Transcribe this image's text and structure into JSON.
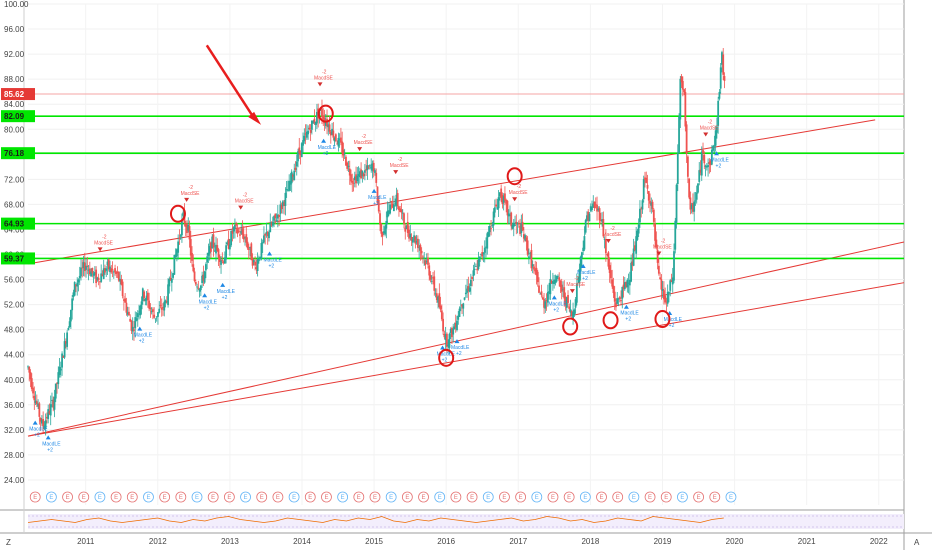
{
  "chart_data": {
    "type": "candlestick",
    "title": "",
    "xlabel": "",
    "ylabel": "",
    "ylim": [
      20,
      100
    ],
    "y_ticks": [
      "24.00",
      "28.00",
      "32.00",
      "36.00",
      "40.00",
      "44.00",
      "48.00",
      "52.00",
      "56.00",
      "60.00",
      "64.00",
      "68.00",
      "72.00",
      "76.00",
      "80.00",
      "84.00",
      "88.00",
      "92.00",
      "96.00",
      "100.00"
    ],
    "x_ticks": [
      {
        "label": "2011",
        "x": 2011.0
      },
      {
        "label": "2012",
        "x": 2012.0
      },
      {
        "label": "2013",
        "x": 2013.0
      },
      {
        "label": "2014",
        "x": 2014.0
      },
      {
        "label": "2015",
        "x": 2015.0
      },
      {
        "label": "2016",
        "x": 2016.0
      },
      {
        "label": "2017",
        "x": 2017.0
      },
      {
        "label": "2018",
        "x": 2018.0
      },
      {
        "label": "2019",
        "x": 2019.0
      },
      {
        "label": "2020",
        "x": 2020.0
      },
      {
        "label": "2021",
        "x": 2021.0
      },
      {
        "label": "2022",
        "x": 2022.0
      }
    ],
    "xlim": [
      2010.2,
      2022.35
    ],
    "last_price": {
      "label": "85.62",
      "value": 85.62,
      "color": "#e53935"
    },
    "support_resistance": [
      {
        "label": "82.09",
        "value": 82.09
      },
      {
        "label": "76.18",
        "value": 76.18
      },
      {
        "label": "64.93",
        "value": 64.93
      },
      {
        "label": "59.37",
        "value": 59.37
      }
    ],
    "trendlines": [
      {
        "x1": 2010.2,
        "y1": 58.5,
        "x2": 2021.95,
        "y2": 81.5
      },
      {
        "x1": 2010.2,
        "y1": 31.0,
        "x2": 2022.35,
        "y2": 62.0
      },
      {
        "x1": 2010.2,
        "y1": 31.0,
        "x2": 2022.35,
        "y2": 55.5
      }
    ],
    "price_path": [
      [
        2010.2,
        42.0
      ],
      [
        2010.3,
        37.0
      ],
      [
        2010.4,
        32.5
      ],
      [
        2010.55,
        36.5
      ],
      [
        2010.7,
        45.0
      ],
      [
        2010.85,
        55.0
      ],
      [
        2011.0,
        58.5
      ],
      [
        2011.15,
        56.0
      ],
      [
        2011.3,
        58.0
      ],
      [
        2011.45,
        56.5
      ],
      [
        2011.55,
        52.0
      ],
      [
        2011.65,
        48.0
      ],
      [
        2011.8,
        54.0
      ],
      [
        2011.95,
        50.0
      ],
      [
        2012.1,
        52.0
      ],
      [
        2012.25,
        60.0
      ],
      [
        2012.35,
        66.0
      ],
      [
        2012.42,
        64.0
      ],
      [
        2012.5,
        56.0
      ],
      [
        2012.6,
        55.0
      ],
      [
        2012.75,
        62.0
      ],
      [
        2012.9,
        59.0
      ],
      [
        2013.05,
        64.0
      ],
      [
        2013.2,
        63.0
      ],
      [
        2013.35,
        58.0
      ],
      [
        2013.5,
        63.0
      ],
      [
        2013.65,
        66.0
      ],
      [
        2013.8,
        70.0
      ],
      [
        2013.95,
        76.0
      ],
      [
        2014.1,
        80.0
      ],
      [
        2014.25,
        83.0
      ],
      [
        2014.4,
        80.0
      ],
      [
        2014.55,
        77.0
      ],
      [
        2014.7,
        72.0
      ],
      [
        2014.85,
        73.0
      ],
      [
        2015.0,
        74.0
      ],
      [
        2015.1,
        63.0
      ],
      [
        2015.2,
        67.0
      ],
      [
        2015.3,
        69.0
      ],
      [
        2015.45,
        64.0
      ],
      [
        2015.6,
        62.0
      ],
      [
        2015.75,
        58.0
      ],
      [
        2015.9,
        52.0
      ],
      [
        2016.0,
        46.0
      ],
      [
        2016.1,
        48.0
      ],
      [
        2016.2,
        52.0
      ],
      [
        2016.35,
        56.0
      ],
      [
        2016.5,
        60.0
      ],
      [
        2016.65,
        66.0
      ],
      [
        2016.75,
        70.0
      ],
      [
        2016.9,
        65.0
      ],
      [
        2017.05,
        64.0
      ],
      [
        2017.2,
        58.0
      ],
      [
        2017.35,
        52.0
      ],
      [
        2017.5,
        57.0
      ],
      [
        2017.65,
        53.0
      ],
      [
        2017.75,
        50.0
      ],
      [
        2017.85,
        58.0
      ],
      [
        2017.95,
        66.0
      ],
      [
        2018.05,
        68.0
      ],
      [
        2018.15,
        66.0
      ],
      [
        2018.25,
        58.0
      ],
      [
        2018.35,
        52.0
      ],
      [
        2018.45,
        54.0
      ],
      [
        2018.55,
        57.0
      ],
      [
        2018.65,
        63.0
      ],
      [
        2018.75,
        72.0
      ],
      [
        2018.85,
        68.0
      ],
      [
        2018.95,
        56.0
      ],
      [
        2019.05,
        52.0
      ],
      [
        2019.15,
        57.0
      ],
      [
        2019.25,
        88.0
      ],
      [
        2019.3,
        85.0
      ],
      [
        2019.38,
        66.0
      ],
      [
        2019.48,
        70.0
      ],
      [
        2019.55,
        76.0
      ],
      [
        2019.65,
        74.0
      ],
      [
        2019.75,
        80.0
      ],
      [
        2019.82,
        92.0
      ],
      [
        2019.87,
        85.62
      ]
    ],
    "volume_profile": [
      3,
      4,
      5,
      4,
      3,
      5,
      6,
      4,
      3,
      4,
      5,
      6,
      4,
      3,
      5,
      4,
      6,
      7,
      5,
      4,
      3,
      4,
      6,
      5,
      4,
      3,
      5,
      4,
      6,
      5,
      7,
      4,
      3,
      5,
      4,
      6,
      5,
      4,
      3,
      4,
      5,
      6,
      4,
      5,
      7,
      6,
      4,
      5,
      3,
      4,
      6,
      5,
      4,
      7,
      6,
      5,
      4,
      3,
      5,
      6
    ],
    "signal_labels": {
      "short": "MacdSE",
      "long": "MacdLE",
      "short_count": "-2",
      "long_count": "+2"
    },
    "signals": [
      {
        "type": "long",
        "x": 2010.3
      },
      {
        "type": "long",
        "x": 2010.48
      },
      {
        "type": "short",
        "x": 2011.2
      },
      {
        "type": "long",
        "x": 2011.75
      },
      {
        "type": "short",
        "x": 2012.4
      },
      {
        "type": "long",
        "x": 2012.65
      },
      {
        "type": "long",
        "x": 2012.9
      },
      {
        "type": "short",
        "x": 2013.15
      },
      {
        "type": "long",
        "x": 2013.55
      },
      {
        "type": "short",
        "x": 2014.25
      },
      {
        "type": "long",
        "x": 2014.3
      },
      {
        "type": "short",
        "x": 2014.8
      },
      {
        "type": "long",
        "x": 2015.0
      },
      {
        "type": "short",
        "x": 2015.3
      },
      {
        "type": "long",
        "x": 2015.95
      },
      {
        "type": "long",
        "x": 2016.15
      },
      {
        "type": "short",
        "x": 2016.95
      },
      {
        "type": "long",
        "x": 2017.5
      },
      {
        "type": "short",
        "x": 2017.75
      },
      {
        "type": "long",
        "x": 2017.9
      },
      {
        "type": "short",
        "x": 2018.25
      },
      {
        "type": "long",
        "x": 2018.5
      },
      {
        "type": "short",
        "x": 2018.95
      },
      {
        "type": "long",
        "x": 2019.1
      },
      {
        "type": "short",
        "x": 2019.6
      },
      {
        "type": "long",
        "x": 2019.75
      }
    ],
    "circled_points": [
      {
        "x": 2012.28,
        "y": 66.5
      },
      {
        "x": 2014.33,
        "y": 82.5
      },
      {
        "x": 2016.0,
        "y": 43.5
      },
      {
        "x": 2016.95,
        "y": 72.5
      },
      {
        "x": 2017.72,
        "y": 48.5
      },
      {
        "x": 2018.28,
        "y": 49.5
      },
      {
        "x": 2019.0,
        "y": 49.7
      }
    ],
    "event_marks": {
      "label": "E",
      "count": 44
    },
    "colors": {
      "up": "#26a69a",
      "down": "#ef5350",
      "support": "#00e600",
      "trend": "#e53935",
      "arrow": "#e81e1e"
    }
  },
  "icons": {
    "zoom": "Z",
    "auto_scale": "A"
  }
}
